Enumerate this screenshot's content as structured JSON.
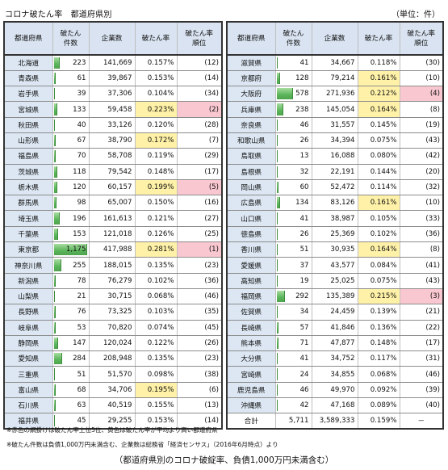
{
  "title": "コロナ破たん率　都道府県別",
  "unit": "（単位：件）",
  "headers": {
    "pref": "都道府県",
    "count_line1": "破たん",
    "count_line2": "件数",
    "companies": "企業数",
    "rate": "破たん率",
    "rank_line1": "破たん率",
    "rank_line2": "順位"
  },
  "max_count": 1175,
  "colors": {
    "bar": "#5ab55a",
    "rate_highlight": "#fff2a8",
    "rank_highlight": "#f8c7cf",
    "pref_bg": "#dce7f3"
  },
  "left_rows": [
    {
      "pref": "北海道",
      "count": "223",
      "count_value": 223,
      "companies": "141,669",
      "rate": "0.157%",
      "rank": "(12)",
      "rate_hl": false,
      "rank_hl": false
    },
    {
      "pref": "青森県",
      "count": "61",
      "count_value": 61,
      "companies": "39,867",
      "rate": "0.153%",
      "rank": "(14)",
      "rate_hl": false,
      "rank_hl": false
    },
    {
      "pref": "岩手県",
      "count": "39",
      "count_value": 39,
      "companies": "37,306",
      "rate": "0.104%",
      "rank": "(34)",
      "rate_hl": false,
      "rank_hl": false
    },
    {
      "pref": "宮城県",
      "count": "133",
      "count_value": 133,
      "companies": "59,458",
      "rate": "0.223%",
      "rank": "(2)",
      "rate_hl": true,
      "rank_hl": true
    },
    {
      "pref": "秋田県",
      "count": "40",
      "count_value": 40,
      "companies": "33,126",
      "rate": "0.120%",
      "rank": "(28)",
      "rate_hl": false,
      "rank_hl": false
    },
    {
      "pref": "山形県",
      "count": "67",
      "count_value": 67,
      "companies": "38,790",
      "rate": "0.172%",
      "rank": "(7)",
      "rate_hl": true,
      "rank_hl": false
    },
    {
      "pref": "福島県",
      "count": "70",
      "count_value": 70,
      "companies": "58,708",
      "rate": "0.119%",
      "rank": "(29)",
      "rate_hl": false,
      "rank_hl": false
    },
    {
      "pref": "茨城県",
      "count": "118",
      "count_value": 118,
      "companies": "79,542",
      "rate": "0.148%",
      "rank": "(17)",
      "rate_hl": false,
      "rank_hl": false
    },
    {
      "pref": "栃木県",
      "count": "120",
      "count_value": 120,
      "companies": "60,157",
      "rate": "0.199%",
      "rank": "(5)",
      "rate_hl": true,
      "rank_hl": true
    },
    {
      "pref": "群馬県",
      "count": "98",
      "count_value": 98,
      "companies": "65,007",
      "rate": "0.150%",
      "rank": "(16)",
      "rate_hl": false,
      "rank_hl": false
    },
    {
      "pref": "埼玉県",
      "count": "196",
      "count_value": 196,
      "companies": "161,613",
      "rate": "0.121%",
      "rank": "(27)",
      "rate_hl": false,
      "rank_hl": false
    },
    {
      "pref": "千葉県",
      "count": "153",
      "count_value": 153,
      "companies": "121,018",
      "rate": "0.126%",
      "rank": "(25)",
      "rate_hl": false,
      "rank_hl": false
    },
    {
      "pref": "東京都",
      "count": "1,175",
      "count_value": 1175,
      "companies": "417,988",
      "rate": "0.281%",
      "rank": "(1)",
      "rate_hl": true,
      "rank_hl": true
    },
    {
      "pref": "神奈川県",
      "count": "255",
      "count_value": 255,
      "companies": "188,015",
      "rate": "0.135%",
      "rank": "(23)",
      "rate_hl": false,
      "rank_hl": false
    },
    {
      "pref": "新潟県",
      "count": "78",
      "count_value": 78,
      "companies": "76,279",
      "rate": "0.102%",
      "rank": "(36)",
      "rate_hl": false,
      "rank_hl": false
    },
    {
      "pref": "山梨県",
      "count": "21",
      "count_value": 21,
      "companies": "30,715",
      "rate": "0.068%",
      "rank": "(46)",
      "rate_hl": false,
      "rank_hl": false
    },
    {
      "pref": "長野県",
      "count": "76",
      "count_value": 76,
      "companies": "73,325",
      "rate": "0.103%",
      "rank": "(35)",
      "rate_hl": false,
      "rank_hl": false
    },
    {
      "pref": "岐阜県",
      "count": "53",
      "count_value": 53,
      "companies": "70,820",
      "rate": "0.074%",
      "rank": "(45)",
      "rate_hl": false,
      "rank_hl": false
    },
    {
      "pref": "静岡県",
      "count": "147",
      "count_value": 147,
      "companies": "120,024",
      "rate": "0.122%",
      "rank": "(26)",
      "rate_hl": false,
      "rank_hl": false
    },
    {
      "pref": "愛知県",
      "count": "284",
      "count_value": 284,
      "companies": "208,948",
      "rate": "0.135%",
      "rank": "(23)",
      "rate_hl": false,
      "rank_hl": false
    },
    {
      "pref": "三重県",
      "count": "51",
      "count_value": 51,
      "companies": "51,570",
      "rate": "0.098%",
      "rank": "(38)",
      "rate_hl": false,
      "rank_hl": false
    },
    {
      "pref": "富山県",
      "count": "68",
      "count_value": 68,
      "companies": "34,706",
      "rate": "0.195%",
      "rank": "(6)",
      "rate_hl": true,
      "rank_hl": false
    },
    {
      "pref": "石川県",
      "count": "63",
      "count_value": 63,
      "companies": "40,519",
      "rate": "0.155%",
      "rank": "(13)",
      "rate_hl": false,
      "rank_hl": false
    },
    {
      "pref": "福井県",
      "count": "45",
      "count_value": 45,
      "companies": "29,255",
      "rate": "0.153%",
      "rank": "(14)",
      "rate_hl": false,
      "rank_hl": false
    }
  ],
  "right_rows": [
    {
      "pref": "滋賀県",
      "count": "41",
      "count_value": 41,
      "companies": "34,667",
      "rate": "0.118%",
      "rank": "(30)",
      "rate_hl": false,
      "rank_hl": false
    },
    {
      "pref": "京都府",
      "count": "128",
      "count_value": 128,
      "companies": "79,214",
      "rate": "0.161%",
      "rank": "(10)",
      "rate_hl": true,
      "rank_hl": false
    },
    {
      "pref": "大阪府",
      "count": "578",
      "count_value": 578,
      "companies": "271,936",
      "rate": "0.212%",
      "rank": "(4)",
      "rate_hl": true,
      "rank_hl": true
    },
    {
      "pref": "兵庫県",
      "count": "238",
      "count_value": 238,
      "companies": "145,054",
      "rate": "0.164%",
      "rank": "(8)",
      "rate_hl": true,
      "rank_hl": false
    },
    {
      "pref": "奈良県",
      "count": "46",
      "count_value": 46,
      "companies": "31,557",
      "rate": "0.145%",
      "rank": "(19)",
      "rate_hl": false,
      "rank_hl": false
    },
    {
      "pref": "和歌山県",
      "count": "26",
      "count_value": 26,
      "companies": "34,394",
      "rate": "0.075%",
      "rank": "(43)",
      "rate_hl": false,
      "rank_hl": false
    },
    {
      "pref": "鳥取県",
      "count": "13",
      "count_value": 13,
      "companies": "16,088",
      "rate": "0.080%",
      "rank": "(42)",
      "rate_hl": false,
      "rank_hl": false
    },
    {
      "pref": "島根県",
      "count": "32",
      "count_value": 32,
      "companies": "22,191",
      "rate": "0.144%",
      "rank": "(20)",
      "rate_hl": false,
      "rank_hl": false
    },
    {
      "pref": "岡山県",
      "count": "60",
      "count_value": 60,
      "companies": "52,472",
      "rate": "0.114%",
      "rank": "(32)",
      "rate_hl": false,
      "rank_hl": false
    },
    {
      "pref": "広島県",
      "count": "134",
      "count_value": 134,
      "companies": "83,126",
      "rate": "0.161%",
      "rank": "(10)",
      "rate_hl": true,
      "rank_hl": false
    },
    {
      "pref": "山口県",
      "count": "41",
      "count_value": 41,
      "companies": "38,987",
      "rate": "0.105%",
      "rank": "(33)",
      "rate_hl": false,
      "rank_hl": false
    },
    {
      "pref": "徳島県",
      "count": "26",
      "count_value": 26,
      "companies": "25,369",
      "rate": "0.102%",
      "rank": "(36)",
      "rate_hl": false,
      "rank_hl": false
    },
    {
      "pref": "香川県",
      "count": "51",
      "count_value": 51,
      "companies": "30,935",
      "rate": "0.164%",
      "rank": "(8)",
      "rate_hl": true,
      "rank_hl": false
    },
    {
      "pref": "愛媛県",
      "count": "37",
      "count_value": 37,
      "companies": "43,577",
      "rate": "0.084%",
      "rank": "(41)",
      "rate_hl": false,
      "rank_hl": false
    },
    {
      "pref": "高知県",
      "count": "19",
      "count_value": 19,
      "companies": "25,025",
      "rate": "0.075%",
      "rank": "(43)",
      "rate_hl": false,
      "rank_hl": false
    },
    {
      "pref": "福岡県",
      "count": "292",
      "count_value": 292,
      "companies": "135,389",
      "rate": "0.215%",
      "rank": "(3)",
      "rate_hl": true,
      "rank_hl": true
    },
    {
      "pref": "佐賀県",
      "count": "34",
      "count_value": 34,
      "companies": "24,459",
      "rate": "0.139%",
      "rank": "(21)",
      "rate_hl": false,
      "rank_hl": false
    },
    {
      "pref": "長崎県",
      "count": "57",
      "count_value": 57,
      "companies": "41,846",
      "rate": "0.136%",
      "rank": "(22)",
      "rate_hl": false,
      "rank_hl": false
    },
    {
      "pref": "熊本県",
      "count": "71",
      "count_value": 71,
      "companies": "47,877",
      "rate": "0.148%",
      "rank": "(17)",
      "rate_hl": false,
      "rank_hl": false
    },
    {
      "pref": "大分県",
      "count": "41",
      "count_value": 41,
      "companies": "34,752",
      "rate": "0.117%",
      "rank": "(31)",
      "rate_hl": false,
      "rank_hl": false
    },
    {
      "pref": "宮崎県",
      "count": "24",
      "count_value": 24,
      "companies": "34,855",
      "rate": "0.068%",
      "rank": "(46)",
      "rate_hl": false,
      "rank_hl": false
    },
    {
      "pref": "鹿児島県",
      "count": "46",
      "count_value": 46,
      "companies": "49,970",
      "rate": "0.092%",
      "rank": "(39)",
      "rate_hl": false,
      "rank_hl": false
    },
    {
      "pref": "沖縄県",
      "count": "42",
      "count_value": 42,
      "companies": "47,168",
      "rate": "0.089%",
      "rank": "(40)",
      "rate_hl": false,
      "rank_hl": false
    }
  ],
  "total": {
    "label": "合計",
    "count": "5,711",
    "companies": "3,589,333",
    "rate": "0.159%",
    "rank": "－"
  },
  "notes": [
    "※赤色の網掛けは破たん率上位5位、黄色は破たん率が平均より高い都道府県",
    "※破たん件数は負債1,000万円未満含む、企業数は総務省「経済センサス」（2016年6月時点）より"
  ],
  "caption": "（都道府県別のコロナ破綻率、負債1,000万円未満含む）"
}
